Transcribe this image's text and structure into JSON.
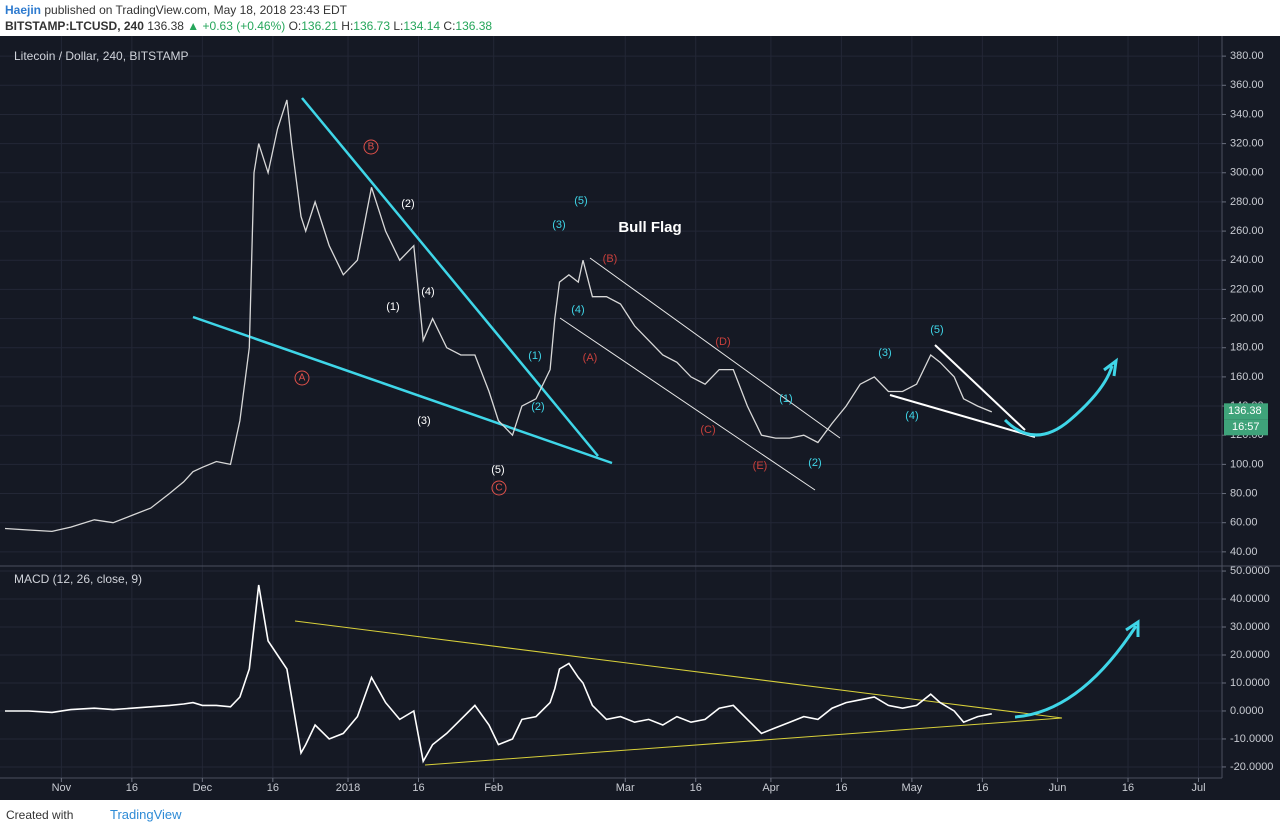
{
  "header": {
    "author": "Haejin",
    "published": "published on TradingView.com, May 18, 2018 23:43 EDT"
  },
  "quote": {
    "symbol": "BITSTAMP:LTCUSD, 240",
    "last": "136.38",
    "change": "▲ +0.63 (+0.46%)",
    "ohlc": [
      {
        "label": "O:",
        "value": "136.21"
      },
      {
        "label": "H:",
        "value": "136.73"
      },
      {
        "label": "L:",
        "value": "134.14"
      },
      {
        "label": "C:",
        "value": "136.38"
      }
    ]
  },
  "footer": {
    "created": "Created with",
    "brand": "TradingView"
  },
  "chart_data": [
    {
      "type": "line",
      "title": "Litecoin / Dollar, 240, BITSTAMP",
      "x": [
        "2017-10-20",
        "2017-10-25",
        "2017-10-30",
        "2017-11-03",
        "2017-11-08",
        "2017-11-12",
        "2017-11-16",
        "2017-11-20",
        "2017-11-24",
        "2017-11-27",
        "2017-11-29",
        "2017-12-01",
        "2017-12-04",
        "2017-12-07",
        "2017-12-09",
        "2017-12-11",
        "2017-12-12",
        "2017-12-13",
        "2017-12-15",
        "2017-12-17",
        "2017-12-19",
        "2017-12-20",
        "2017-12-22",
        "2017-12-23",
        "2017-12-25",
        "2017-12-28",
        "2017-12-31",
        "2018-01-03",
        "2018-01-06",
        "2018-01-09",
        "2018-01-12",
        "2018-01-15",
        "2018-01-17",
        "2018-01-19",
        "2018-01-22",
        "2018-01-25",
        "2018-01-28",
        "2018-01-31",
        "2018-02-02",
        "2018-02-05",
        "2018-02-07",
        "2018-02-10",
        "2018-02-13",
        "2018-02-14",
        "2018-02-15",
        "2018-02-17",
        "2018-02-19",
        "2018-02-20",
        "2018-02-22",
        "2018-02-25",
        "2018-02-28",
        "2018-03-03",
        "2018-03-06",
        "2018-03-09",
        "2018-03-12",
        "2018-03-15",
        "2018-03-18",
        "2018-03-21",
        "2018-03-24",
        "2018-03-27",
        "2018-03-30",
        "2018-04-02",
        "2018-04-05",
        "2018-04-08",
        "2018-04-11",
        "2018-04-14",
        "2018-04-17",
        "2018-04-20",
        "2018-04-23",
        "2018-04-26",
        "2018-04-29",
        "2018-05-02",
        "2018-05-05",
        "2018-05-07",
        "2018-05-10",
        "2018-05-12",
        "2018-05-15",
        "2018-05-18"
      ],
      "series": [
        {
          "name": "LTCUSD",
          "color": "#d8d8d8",
          "values": [
            56,
            55,
            54,
            57,
            62,
            60,
            65,
            70,
            80,
            88,
            95,
            98,
            102,
            100,
            130,
            180,
            300,
            320,
            300,
            330,
            350,
            320,
            270,
            260,
            280,
            250,
            230,
            240,
            290,
            260,
            240,
            250,
            185,
            200,
            180,
            175,
            175,
            150,
            130,
            120,
            140,
            145,
            165,
            200,
            225,
            230,
            225,
            240,
            215,
            215,
            210,
            195,
            185,
            175,
            170,
            160,
            155,
            165,
            165,
            140,
            120,
            118,
            118,
            120,
            115,
            128,
            140,
            155,
            160,
            150,
            150,
            155,
            175,
            170,
            160,
            145,
            140,
            136
          ]
        }
      ],
      "xlim": [
        "2017-10-20",
        "2018-07-06"
      ],
      "xticks": [
        {
          "value": "2017-11-01",
          "label": "Nov"
        },
        {
          "value": "2017-11-16",
          "label": "16"
        },
        {
          "value": "2017-12-01",
          "label": "Dec"
        },
        {
          "value": "2017-12-16",
          "label": "16"
        },
        {
          "value": "2018-01-01",
          "label": "2018"
        },
        {
          "value": "2018-01-16",
          "label": "16"
        },
        {
          "value": "2018-02-01",
          "label": "Feb"
        },
        {
          "value": "2018-03-01",
          "label": "Mar"
        },
        {
          "value": "2018-03-16",
          "label": "16"
        },
        {
          "value": "2018-04-01",
          "label": "Apr"
        },
        {
          "value": "2018-04-16",
          "label": "16"
        },
        {
          "value": "2018-05-01",
          "label": "May"
        },
        {
          "value": "2018-05-16",
          "label": "16"
        },
        {
          "value": "2018-06-01",
          "label": "Jun"
        },
        {
          "value": "2018-06-16",
          "label": "16"
        },
        {
          "value": "2018-07-01",
          "label": "Jul"
        }
      ],
      "ylim": [
        30.3,
        393.8
      ],
      "yticks": [
        {
          "value": 40,
          "label": "40.00"
        },
        {
          "value": 60,
          "label": "60.00"
        },
        {
          "value": 80,
          "label": "80.00"
        },
        {
          "value": 100,
          "label": "100.00"
        },
        {
          "value": 120,
          "label": "120.00"
        },
        {
          "value": 140,
          "label": "140.00"
        },
        {
          "value": 160,
          "label": "160.00"
        },
        {
          "value": 180,
          "label": "180.00"
        },
        {
          "value": 200,
          "label": "200.00"
        },
        {
          "value": 220,
          "label": "220.00"
        },
        {
          "value": 240,
          "label": "240.00"
        },
        {
          "value": 260,
          "label": "260.00"
        },
        {
          "value": 280,
          "label": "280.00"
        },
        {
          "value": 300,
          "label": "300.00"
        },
        {
          "value": 320,
          "label": "320.00"
        },
        {
          "value": 340,
          "label": "340.00"
        },
        {
          "value": 360,
          "label": "360.00"
        },
        {
          "value": 380,
          "label": "380.00"
        }
      ],
      "grid": true,
      "price_label": {
        "value": 136.38,
        "label": "136.38",
        "countdown": "16:57",
        "color": "#3fa37a"
      },
      "annotations": [
        {
          "text": "(2)",
          "color": "#ffffff"
        },
        {
          "text": "(1)",
          "color": "#ffffff"
        },
        {
          "text": "(4)",
          "color": "#ffffff"
        },
        {
          "text": "(3)",
          "color": "#ffffff"
        },
        {
          "text": "(5)",
          "color": "#ffffff"
        },
        {
          "text": "A",
          "color": "#e0514a",
          "circled": true
        },
        {
          "text": "B",
          "color": "#e0514a",
          "circled": true
        },
        {
          "text": "C",
          "color": "#e0514a",
          "circled": true
        },
        {
          "text": "(1)",
          "color": "#3fd6e8"
        },
        {
          "text": "(2)",
          "color": "#3fd6e8"
        },
        {
          "text": "(3)",
          "color": "#3fd6e8"
        },
        {
          "text": "(4)",
          "color": "#3fd6e8"
        },
        {
          "text": "(5)",
          "color": "#3fd6e8"
        },
        {
          "text": "(1)",
          "color": "#3fd6e8"
        },
        {
          "text": "(2)",
          "color": "#3fd6e8"
        },
        {
          "text": "(3)",
          "color": "#3fd6e8"
        },
        {
          "text": "(4)",
          "color": "#3fd6e8"
        },
        {
          "text": "(5)",
          "color": "#3fd6e8"
        },
        {
          "text": "(A)",
          "color": "#c9403c"
        },
        {
          "text": "(B)",
          "color": "#c9403c"
        },
        {
          "text": "(C)",
          "color": "#c9403c"
        },
        {
          "text": "(D)",
          "color": "#c9403c"
        },
        {
          "text": "(E)",
          "color": "#c9403c"
        },
        {
          "text": "Bull Flag",
          "color": "#ffffff",
          "bold": true
        }
      ]
    },
    {
      "type": "line",
      "title": "MACD (12, 26, close, 9)",
      "x": [
        "2017-10-20",
        "2017-10-25",
        "2017-10-30",
        "2017-11-03",
        "2017-11-08",
        "2017-11-12",
        "2017-11-16",
        "2017-11-20",
        "2017-11-24",
        "2017-11-27",
        "2017-11-29",
        "2017-12-01",
        "2017-12-04",
        "2017-12-07",
        "2017-12-09",
        "2017-12-11",
        "2017-12-12",
        "2017-12-13",
        "2017-12-15",
        "2017-12-17",
        "2017-12-19",
        "2017-12-20",
        "2017-12-22",
        "2017-12-23",
        "2017-12-25",
        "2017-12-28",
        "2017-12-31",
        "2018-01-03",
        "2018-01-06",
        "2018-01-09",
        "2018-01-12",
        "2018-01-15",
        "2018-01-17",
        "2018-01-19",
        "2018-01-22",
        "2018-01-25",
        "2018-01-28",
        "2018-01-31",
        "2018-02-02",
        "2018-02-05",
        "2018-02-07",
        "2018-02-10",
        "2018-02-13",
        "2018-02-14",
        "2018-02-15",
        "2018-02-17",
        "2018-02-19",
        "2018-02-20",
        "2018-02-22",
        "2018-02-25",
        "2018-02-28",
        "2018-03-03",
        "2018-03-06",
        "2018-03-09",
        "2018-03-12",
        "2018-03-15",
        "2018-03-18",
        "2018-03-21",
        "2018-03-24",
        "2018-03-27",
        "2018-03-30",
        "2018-04-02",
        "2018-04-05",
        "2018-04-08",
        "2018-04-11",
        "2018-04-14",
        "2018-04-17",
        "2018-04-20",
        "2018-04-23",
        "2018-04-26",
        "2018-04-29",
        "2018-05-02",
        "2018-05-05",
        "2018-05-07",
        "2018-05-10",
        "2018-05-12",
        "2018-05-15",
        "2018-05-18"
      ],
      "series": [
        {
          "name": "MACD",
          "color": "#ffffff",
          "values": [
            0,
            0,
            -0.5,
            0.5,
            1,
            0.5,
            1,
            1.5,
            2,
            2.5,
            3,
            2,
            2,
            1.5,
            5,
            15,
            30,
            45,
            25,
            20,
            15,
            5,
            -15,
            -12,
            -5,
            -10,
            -8,
            -2,
            12,
            3,
            -3,
            0,
            -18,
            -12,
            -8,
            -3,
            2,
            -5,
            -12,
            -10,
            -3,
            -2,
            3,
            8,
            15,
            17,
            12,
            10,
            2,
            -3,
            -2,
            -4,
            -3,
            -5,
            -2,
            -4,
            -3,
            1,
            2,
            -3,
            -8,
            -6,
            -4,
            -2,
            -3,
            1,
            3,
            4,
            5,
            2,
            1,
            2,
            6,
            3,
            0,
            -4,
            -2,
            -1
          ]
        }
      ],
      "xlim": [
        "2017-10-20",
        "2018-07-06"
      ],
      "ylim": [
        -23.95,
        51.8
      ],
      "yticks": [
        {
          "value": -20,
          "label": "-20.0000"
        },
        {
          "value": -10,
          "label": "-10.0000"
        },
        {
          "value": 0,
          "label": "0.0000"
        },
        {
          "value": 10,
          "label": "10.0000"
        },
        {
          "value": 20,
          "label": "20.0000"
        },
        {
          "value": 30,
          "label": "30.0000"
        },
        {
          "value": 40,
          "label": "40.0000"
        },
        {
          "value": 50,
          "label": "50.0000"
        }
      ],
      "grid": true
    }
  ]
}
